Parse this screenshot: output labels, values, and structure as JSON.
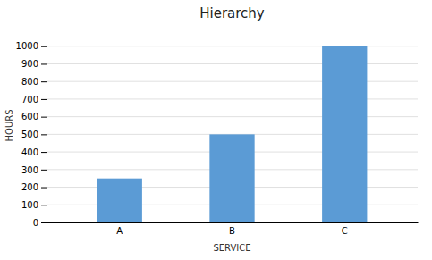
{
  "chart_data": {
    "type": "bar",
    "title": "Hierarchy",
    "categories": [
      "A",
      "B",
      "C"
    ],
    "values": [
      250,
      500,
      1000
    ],
    "color": "#5B9BD5",
    "xlabel": "SERVICE",
    "ylabel": "HOURS",
    "ylim": [
      0,
      1100
    ],
    "yticks": [
      0,
      100,
      200,
      300,
      400,
      500,
      600,
      700,
      800,
      900,
      1000
    ],
    "grid": true
  }
}
